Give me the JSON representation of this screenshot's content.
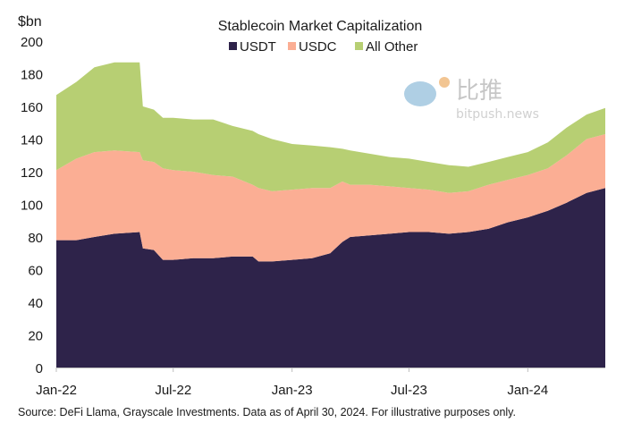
{
  "chart_data": {
    "type": "area",
    "stacked": true,
    "title": "Stablecoin Market Capitalization",
    "ylabel": "$bn",
    "xlabel": "",
    "ylim": [
      0,
      200
    ],
    "yticks": [
      0,
      20,
      40,
      60,
      80,
      100,
      120,
      140,
      160,
      180,
      200
    ],
    "xlim": [
      "2022-01-01",
      "2024-04-30"
    ],
    "xticks": [
      {
        "date": "2022-01-01",
        "label": "Jan-22"
      },
      {
        "date": "2022-07-01",
        "label": "Jul-22"
      },
      {
        "date": "2023-01-01",
        "label": "Jan-23"
      },
      {
        "date": "2023-07-01",
        "label": "Jul-23"
      },
      {
        "date": "2024-01-01",
        "label": "Jan-24"
      }
    ],
    "grid": false,
    "legend": "top-center",
    "dates": [
      "2022-01-01",
      "2022-02-01",
      "2022-03-01",
      "2022-04-01",
      "2022-05-10",
      "2022-05-15",
      "2022-06-01",
      "2022-06-15",
      "2022-07-01",
      "2022-08-01",
      "2022-09-01",
      "2022-10-01",
      "2022-11-01",
      "2022-11-10",
      "2022-12-01",
      "2023-01-01",
      "2023-02-01",
      "2023-03-01",
      "2023-03-20",
      "2023-04-01",
      "2023-05-01",
      "2023-06-01",
      "2023-07-01",
      "2023-08-01",
      "2023-09-01",
      "2023-10-01",
      "2023-11-01",
      "2023-12-01",
      "2024-01-01",
      "2024-02-01",
      "2024-03-01",
      "2024-04-01",
      "2024-04-30"
    ],
    "series": [
      {
        "name": "USDT",
        "color": "#2e234a",
        "values": [
          78,
          78,
          80,
          82,
          83,
          73,
          72,
          66,
          66,
          67,
          67,
          68,
          68,
          65,
          65,
          66,
          67,
          70,
          77,
          80,
          81,
          82,
          83,
          83,
          82,
          83,
          85,
          89,
          92,
          96,
          101,
          107,
          110
        ]
      },
      {
        "name": "USDC",
        "color": "#fbae94",
        "values": [
          43,
          50,
          52,
          51,
          49,
          54,
          54,
          56,
          55,
          53,
          51,
          49,
          44,
          45,
          43,
          43,
          43,
          40,
          37,
          32,
          31,
          29,
          27,
          26,
          25,
          25,
          27,
          26,
          26,
          26,
          29,
          33,
          33
        ]
      },
      {
        "name": "All Other",
        "color": "#b7cf73",
        "values": [
          46,
          47,
          52,
          54,
          55,
          33,
          32,
          31,
          32,
          32,
          34,
          31,
          33,
          33,
          32,
          28,
          26,
          25,
          20,
          21,
          19,
          18,
          18,
          17,
          17,
          15,
          14,
          14,
          14,
          16,
          17,
          15,
          16
        ]
      }
    ]
  },
  "footer": {
    "source": "Source: DeFi Llama, Grayscale Investments. Data as of April 30, 2024. For illustrative purposes only."
  },
  "watermark": {
    "text_cn": "比推",
    "text_en": "bitpush.news"
  }
}
